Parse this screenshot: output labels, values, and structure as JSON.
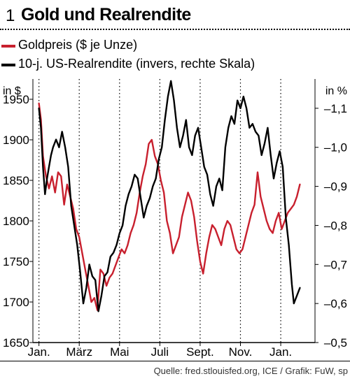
{
  "figure": {
    "number": "1",
    "title": "Gold und Realrendite",
    "source": "Quelle: fred.stlouisfed.org, ICE / Grafik: FuW, sp"
  },
  "colors": {
    "gold": "#c8202e",
    "yield": "#000000"
  },
  "chart_data": {
    "type": "line",
    "title": "Gold und Realrendite",
    "left_axis": {
      "unit_label": "in $",
      "ylim": [
        1650,
        1975
      ],
      "ticks": [
        1650,
        1700,
        1750,
        1800,
        1850,
        1900,
        1950
      ]
    },
    "right_axis": {
      "unit_label": "in %",
      "inverted": true,
      "ylim": [
        -1.175,
        -0.5
      ],
      "ticks": [
        -0.5,
        -0.6,
        -0.7,
        -0.8,
        -0.9,
        -1.0,
        -1.1
      ],
      "tick_labels": [
        "–0,5",
        "–0,6",
        "–0,7",
        "–0,8",
        "–0,9",
        "–1,0",
        "–1,1"
      ]
    },
    "x_ticks": [
      "Jan.",
      "März",
      "Mai",
      "Juli",
      "Sept.",
      "Nov.",
      "Jan."
    ],
    "x_tick_positions": [
      0,
      2,
      4,
      6,
      8,
      10,
      12
    ],
    "xlim": [
      -0.3,
      13.7
    ],
    "grid": {
      "vertical_dotted": true,
      "horizontal": false
    },
    "series": [
      {
        "name": "Goldpreis ($ je Unze)",
        "axis": "left",
        "x": [
          0,
          0.1,
          0.2,
          0.35,
          0.5,
          0.65,
          0.8,
          0.95,
          1.1,
          1.25,
          1.4,
          1.55,
          1.7,
          1.85,
          2.0,
          2.15,
          2.3,
          2.45,
          2.6,
          2.75,
          2.9,
          3.05,
          3.2,
          3.35,
          3.5,
          3.65,
          3.8,
          3.95,
          4.1,
          4.25,
          4.4,
          4.55,
          4.7,
          4.85,
          5.0,
          5.15,
          5.3,
          5.45,
          5.6,
          5.75,
          5.9,
          6.05,
          6.2,
          6.35,
          6.5,
          6.65,
          6.8,
          6.95,
          7.1,
          7.25,
          7.4,
          7.55,
          7.7,
          7.85,
          8.0,
          8.15,
          8.3,
          8.45,
          8.6,
          8.75,
          8.9,
          9.05,
          9.2,
          9.35,
          9.5,
          9.65,
          9.8,
          9.95,
          10.1,
          10.25,
          10.4,
          10.55,
          10.7,
          10.85,
          11.0,
          11.15,
          11.3,
          11.45,
          11.6,
          11.75,
          11.9,
          12.05,
          12.2,
          12.35,
          12.5,
          12.65,
          12.8,
          12.95
        ],
        "values": [
          1945,
          1925,
          1880,
          1855,
          1840,
          1855,
          1835,
          1860,
          1855,
          1820,
          1845,
          1830,
          1815,
          1790,
          1780,
          1760,
          1740,
          1720,
          1700,
          1705,
          1690,
          1740,
          1735,
          1720,
          1730,
          1735,
          1745,
          1755,
          1765,
          1760,
          1770,
          1785,
          1795,
          1810,
          1835,
          1855,
          1870,
          1895,
          1900,
          1880,
          1870,
          1850,
          1835,
          1800,
          1785,
          1760,
          1770,
          1780,
          1805,
          1820,
          1835,
          1825,
          1805,
          1775,
          1750,
          1735,
          1760,
          1780,
          1795,
          1790,
          1780,
          1770,
          1790,
          1800,
          1795,
          1780,
          1765,
          1760,
          1765,
          1780,
          1795,
          1810,
          1820,
          1860,
          1830,
          1815,
          1800,
          1790,
          1785,
          1800,
          1810,
          1790,
          1800,
          1810,
          1815,
          1820,
          1830,
          1845
        ]
      },
      {
        "name": "10-j. US-Realrendite (invers, rechte Skala)",
        "axis": "right",
        "x": [
          0,
          0.1,
          0.2,
          0.3,
          0.4,
          0.5,
          0.6,
          0.7,
          0.85,
          1.0,
          1.15,
          1.3,
          1.45,
          1.6,
          1.75,
          1.9,
          2.05,
          2.2,
          2.35,
          2.5,
          2.65,
          2.8,
          2.95,
          3.1,
          3.25,
          3.4,
          3.55,
          3.7,
          3.85,
          4.0,
          4.15,
          4.3,
          4.45,
          4.6,
          4.75,
          4.9,
          5.05,
          5.2,
          5.35,
          5.5,
          5.65,
          5.8,
          5.95,
          6.1,
          6.25,
          6.4,
          6.55,
          6.7,
          6.85,
          7.0,
          7.15,
          7.3,
          7.45,
          7.6,
          7.75,
          7.9,
          8.05,
          8.2,
          8.35,
          8.5,
          8.65,
          8.8,
          8.95,
          9.1,
          9.25,
          9.4,
          9.55,
          9.7,
          9.85,
          10.0,
          10.15,
          10.3,
          10.45,
          10.6,
          10.75,
          10.9,
          11.05,
          11.2,
          11.35,
          11.5,
          11.65,
          11.8,
          11.95,
          12.1,
          12.25,
          12.4,
          12.55,
          12.65,
          12.8,
          12.95
        ],
        "values": [
          -1.1,
          -1.05,
          -0.95,
          -0.88,
          -0.92,
          -0.95,
          -0.98,
          -1.0,
          -1.02,
          -1.0,
          -1.04,
          -1.0,
          -0.95,
          -0.85,
          -0.8,
          -0.75,
          -0.68,
          -0.6,
          -0.64,
          -0.7,
          -0.67,
          -0.66,
          -0.58,
          -0.62,
          -0.67,
          -0.68,
          -0.72,
          -0.73,
          -0.75,
          -0.78,
          -0.8,
          -0.85,
          -0.88,
          -0.9,
          -0.93,
          -0.92,
          -0.87,
          -0.82,
          -0.85,
          -0.87,
          -0.9,
          -0.92,
          -0.97,
          -1.0,
          -1.07,
          -1.13,
          -1.17,
          -1.12,
          -1.05,
          -1.0,
          -1.03,
          -1.07,
          -1.0,
          -0.98,
          -1.03,
          -1.05,
          -1.0,
          -0.95,
          -0.93,
          -0.88,
          -0.85,
          -0.9,
          -0.92,
          -0.89,
          -1.0,
          -1.05,
          -1.08,
          -1.06,
          -1.12,
          -1.1,
          -1.13,
          -1.1,
          -1.05,
          -1.06,
          -1.04,
          -1.03,
          -0.98,
          -1.01,
          -1.05,
          -0.98,
          -0.92,
          -0.96,
          -0.99,
          -0.95,
          -0.82,
          -0.75,
          -0.65,
          -0.6,
          -0.62,
          -0.64
        ]
      }
    ]
  }
}
